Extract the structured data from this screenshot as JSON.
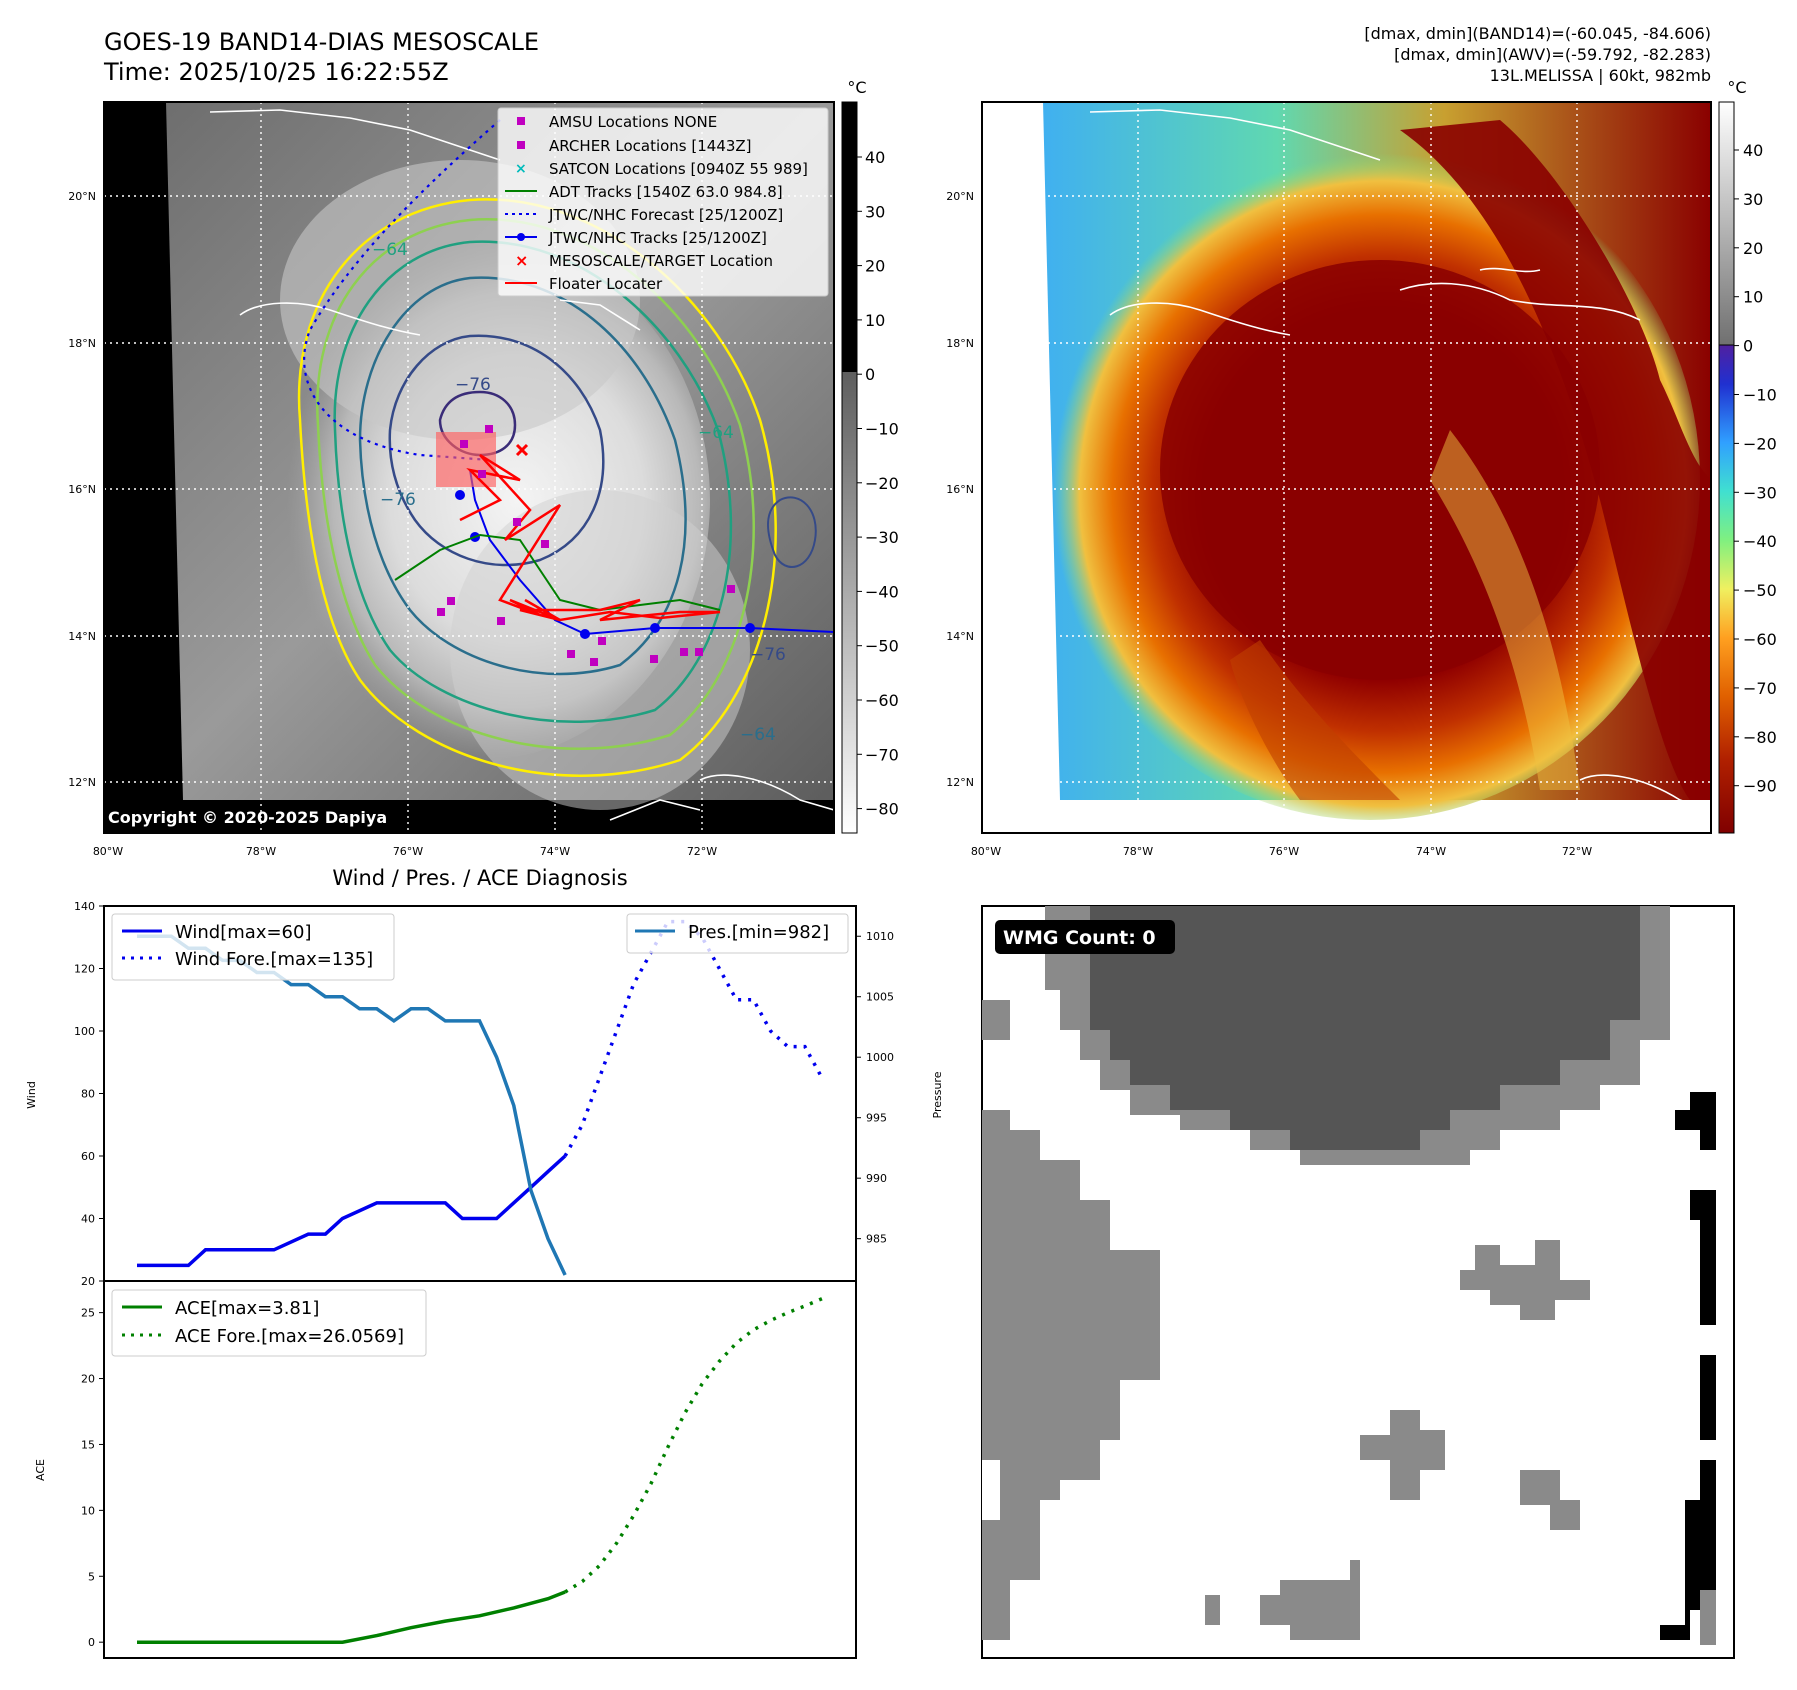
{
  "header": {
    "title_line1": "GOES-19 BAND14-DIAS MESOSCALE",
    "title_line2": "Time: 2025/10/25 16:22:55Z",
    "info_line1": "[dmax, dmin](BAND14)=(-60.045, -84.606)",
    "info_line2": "[dmax, dmin](AWV)=(-59.792, -82.283)",
    "info_line3": "13L.MELISSA | 60kt, 982mb"
  },
  "colors": {
    "wind": "#0000ee",
    "pressure": "#1f77b4",
    "ace": "#008000",
    "track_red": "#ff0000",
    "adt_green": "#008000",
    "magenta": "#c000c0",
    "cyan": "#00bbbb"
  },
  "maps": {
    "lon_ticks": [
      "80°W",
      "78°W",
      "76°W",
      "74°W",
      "72°W"
    ],
    "lat_ticks": [
      "20°N",
      "18°N",
      "16°N",
      "14°N",
      "12°N"
    ],
    "copyright": "Copyright © 2020-2025 Dapiya",
    "contour_labels": [
      "−76",
      "−76",
      "−64",
      "−64",
      "−64",
      "−76"
    ],
    "legend": [
      {
        "label": "AMSU Locations NONE",
        "icon": "square-marker"
      },
      {
        "label": "ARCHER Locations [1443Z]",
        "icon": "square-marker"
      },
      {
        "label": "SATCON Locations [0940Z 55 989]",
        "icon": "x-marker"
      },
      {
        "label": "ADT Tracks [1540Z 63.0 984.8]",
        "icon": "line"
      },
      {
        "label": "JTWC/NHC Forecast [25/1200Z]",
        "icon": "dotted-line"
      },
      {
        "label": "JTWC/NHC Tracks [25/1200Z]",
        "icon": "line-dot"
      },
      {
        "label": "MESOSCALE/TARGET Location",
        "icon": "x-marker"
      },
      {
        "label": "Floater Locater",
        "icon": "line"
      }
    ],
    "cbar_unit": "°C",
    "cbar_left_ticks": [
      "40",
      "30",
      "20",
      "10",
      "0",
      "−10",
      "−20",
      "−30",
      "−40",
      "−50",
      "−60",
      "−70",
      "−80"
    ],
    "cbar_right_ticks": [
      "40",
      "30",
      "20",
      "10",
      "0",
      "−10",
      "−20",
      "−30",
      "−40",
      "−50",
      "−60",
      "−70",
      "−80",
      "−90"
    ]
  },
  "chart_data": [
    {
      "type": "line",
      "title": "Wind / Pres. / ACE Diagnosis",
      "ylabel": "Wind",
      "y2label": "Pressure",
      "ylim": [
        20,
        140
      ],
      "y2lim": [
        981.5,
        1012.5
      ],
      "yticks": [
        "140",
        "120",
        "100",
        "80",
        "60",
        "40",
        "20"
      ],
      "y2ticks": [
        "1010",
        "1005",
        "1000",
        "995",
        "990",
        "985"
      ],
      "series": [
        {
          "name": "Wind[max=60]",
          "x": [
            0,
            3,
            4,
            8,
            10,
            11,
            12,
            14,
            15,
            18,
            19,
            20,
            21,
            23,
            24,
            25
          ],
          "values": [
            25,
            25,
            30,
            30,
            35,
            35,
            40,
            45,
            45,
            45,
            40,
            40,
            40,
            50,
            55,
            60
          ]
        },
        {
          "name": "Wind Fore.[max=135]",
          "x": [
            25,
            26,
            27,
            28,
            29,
            30,
            31,
            32,
            33,
            34,
            35,
            36,
            37,
            38,
            39,
            40
          ],
          "values": [
            60,
            70,
            85,
            100,
            115,
            125,
            135,
            135,
            130,
            120,
            110,
            110,
            100,
            95,
            95,
            85
          ]
        },
        {
          "name": "Pres.[min=982]",
          "x": [
            0,
            1,
            2,
            3,
            4,
            5,
            6,
            7,
            8,
            9,
            10,
            11,
            12,
            13,
            14,
            15,
            16,
            17,
            18,
            19,
            20,
            21,
            22,
            23,
            24,
            25
          ],
          "values": [
            1010,
            1010,
            1010,
            1009,
            1009,
            1008,
            1008,
            1007,
            1007,
            1006,
            1006,
            1005,
            1005,
            1004,
            1004,
            1003,
            1004,
            1004,
            1003,
            1003,
            1003,
            1000,
            996,
            989,
            985,
            982
          ]
        }
      ],
      "legend": [
        "Wind[max=60]",
        "Wind Fore.[max=135]",
        "Pres.[min=982]"
      ]
    },
    {
      "type": "line",
      "ylabel": "ACE",
      "ylim": [
        -1.2,
        27.4
      ],
      "yticks": [
        "25",
        "20",
        "15",
        "10",
        "5",
        "0"
      ],
      "series": [
        {
          "name": "ACE[max=3.81]",
          "x": [
            0,
            3,
            6,
            9,
            12,
            14,
            16,
            18,
            20,
            22,
            24,
            25
          ],
          "values": [
            0,
            0,
            0,
            0,
            0,
            0.5,
            1.1,
            1.6,
            2.0,
            2.6,
            3.3,
            3.81
          ]
        },
        {
          "name": "ACE Fore.[max=26.0569]",
          "x": [
            25,
            26,
            27,
            28,
            29,
            30,
            31,
            32,
            33,
            34,
            35,
            36,
            37,
            38,
            39,
            40
          ],
          "values": [
            3.81,
            4.6,
            5.8,
            7.5,
            9.6,
            12.0,
            14.8,
            17.4,
            19.6,
            21.3,
            22.7,
            23.7,
            24.4,
            25.0,
            25.5,
            26.06
          ]
        }
      ],
      "legend": [
        "ACE[max=3.81]",
        "ACE Fore.[max=26.0569]"
      ]
    }
  ],
  "wmg": {
    "label": "WMG Count: 0"
  }
}
